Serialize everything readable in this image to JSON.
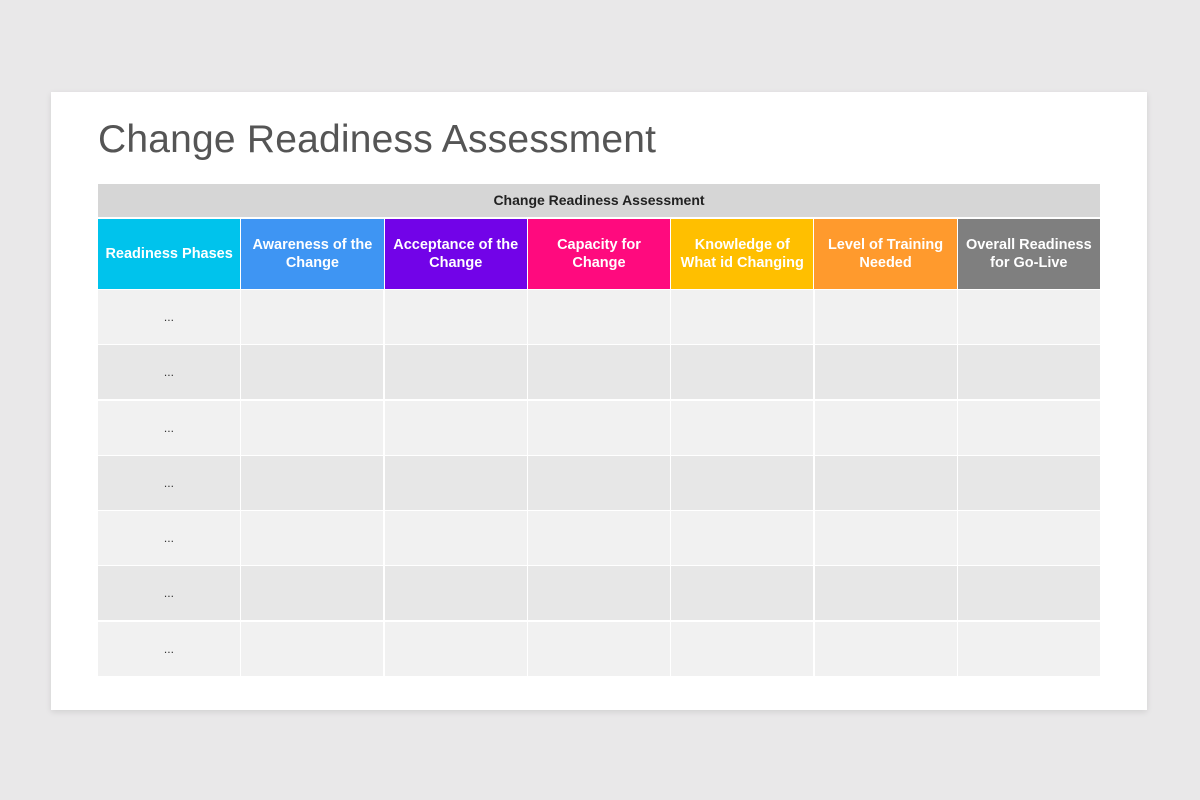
{
  "slide": {
    "title": "Change Readiness Assessment"
  },
  "table": {
    "caption": "Change Readiness Assessment",
    "headers": [
      {
        "label": "Readiness\nPhases",
        "color": "#00c3ec"
      },
      {
        "label": "Awareness of the Change",
        "color": "#3e95f3"
      },
      {
        "label": "Acceptance of the Change",
        "color": "#7203e8"
      },
      {
        "label": "Capacity for Change",
        "color": "#ff0a7e"
      },
      {
        "label": "Knowledge of What id Changing",
        "color": "#ffbf00"
      },
      {
        "label": "Level of Training Needed",
        "color": "#ff9a2d"
      },
      {
        "label": "Overall Readiness for Go-Live",
        "color": "#7f7f7f"
      }
    ],
    "rows": [
      [
        "...",
        "",
        "",
        "",
        "",
        "",
        ""
      ],
      [
        "...",
        "",
        "",
        "",
        "",
        "",
        ""
      ],
      [
        "...",
        "",
        "",
        "",
        "",
        "",
        ""
      ],
      [
        "...",
        "",
        "",
        "",
        "",
        "",
        ""
      ],
      [
        "...",
        "",
        "",
        "",
        "",
        "",
        ""
      ],
      [
        "...",
        "",
        "",
        "",
        "",
        "",
        ""
      ],
      [
        "...",
        "",
        "",
        "",
        "",
        "",
        ""
      ]
    ]
  }
}
